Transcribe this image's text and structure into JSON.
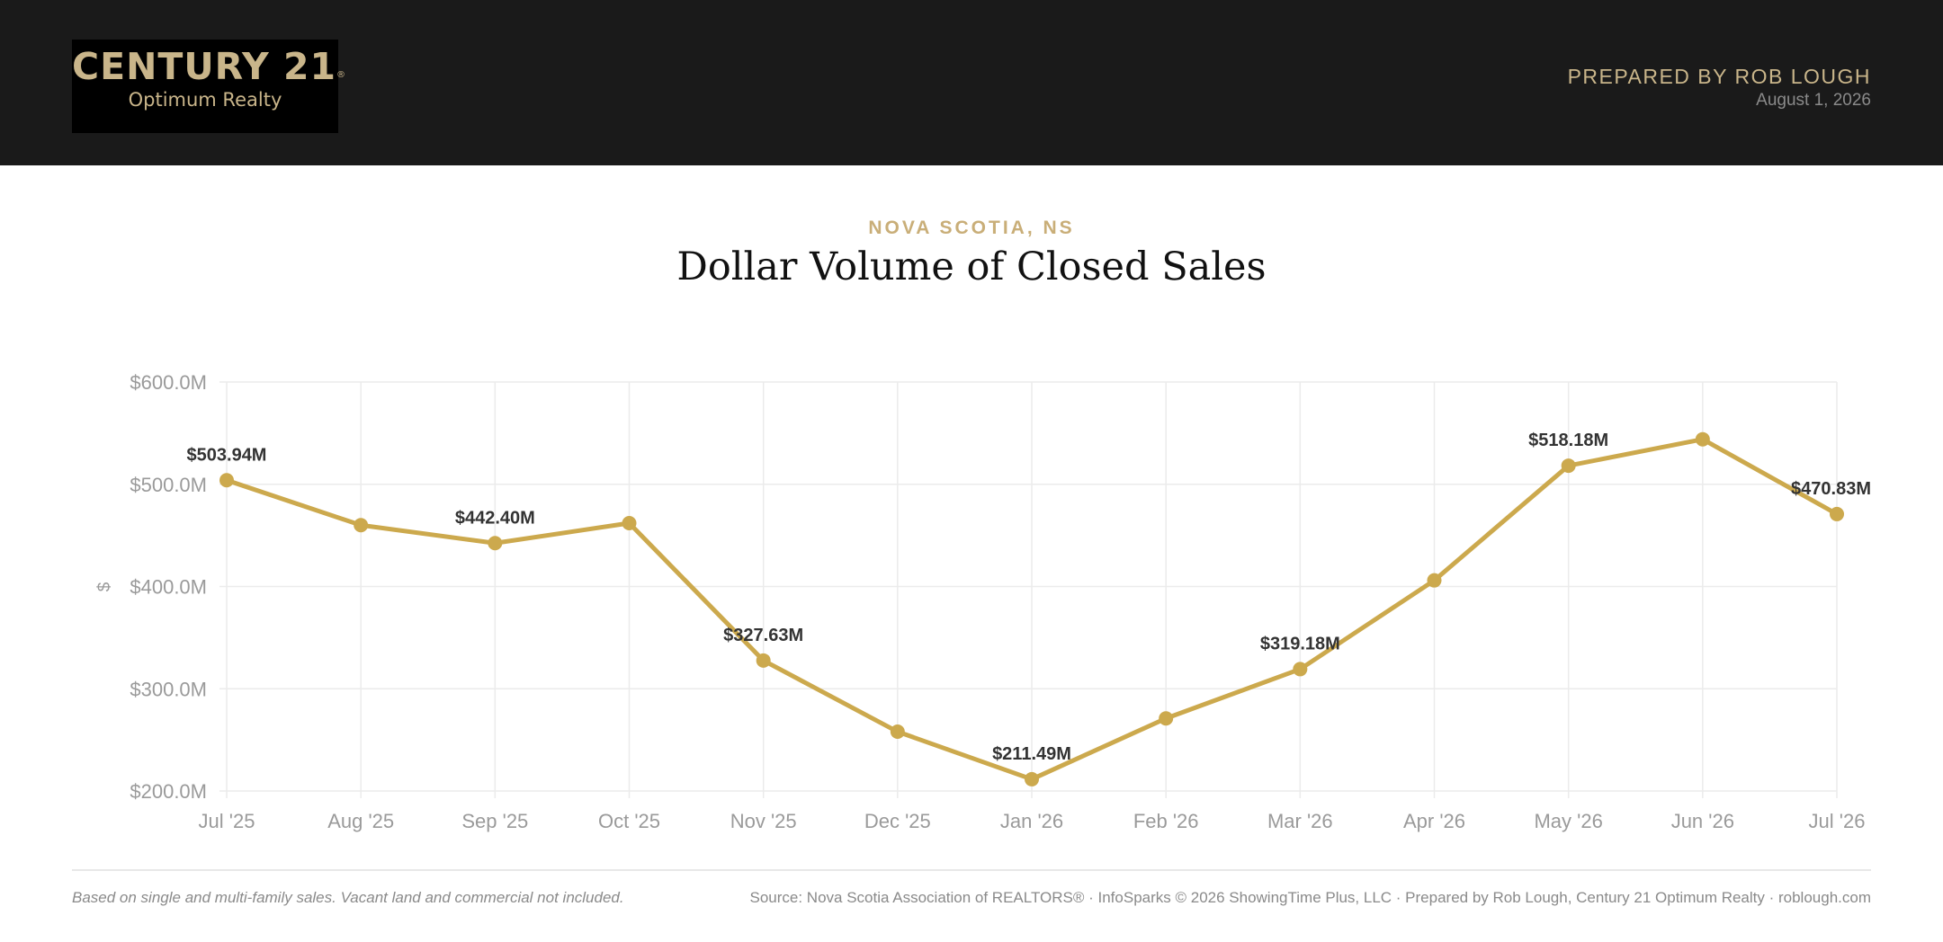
{
  "header": {
    "logo": {
      "brand": "CENTURY 21",
      "registered": "®",
      "subtitle": "Optimum Realty"
    },
    "prepared_by": "PREPARED BY ROB LOUGH",
    "date": "August 1, 2026"
  },
  "region": "NOVA SCOTIA, NS",
  "title": "Dollar Volume of Closed Sales",
  "footer": {
    "note": "Based on single and multi-family sales. Vacant land and commercial not included.",
    "source": "Source: Nova Scotia Association of REALTORS® · InfoSparks © 2026 ShowingTime Plus, LLC · Prepared by Rob Lough, Century 21 Optimum Realty · roblough.com"
  },
  "colors": {
    "header_bg": "#1a1a1a",
    "gold": "#c9ae78",
    "line": "#cca94d"
  },
  "chart_data": {
    "type": "line",
    "title": "Dollar Volume of Closed Sales",
    "ylabel": "$",
    "xlabel": "",
    "categories": [
      "Jul '25",
      "Aug '25",
      "Sep '25",
      "Oct '25",
      "Nov '25",
      "Dec '25",
      "Jan '26",
      "Feb '26",
      "Mar '26",
      "Apr '26",
      "May '26",
      "Jun '26",
      "Jul '26"
    ],
    "values": [
      503.94,
      460.0,
      442.4,
      462.0,
      327.63,
      258.0,
      211.49,
      271.0,
      319.18,
      406.0,
      518.18,
      544.0,
      470.83
    ],
    "data_labels": [
      "$503.94M",
      "",
      "$442.40M",
      "",
      "$327.63M",
      "",
      "$211.49M",
      "",
      "$319.18M",
      "",
      "$518.18M",
      "",
      "$470.83M"
    ],
    "yticks": [
      200,
      300,
      400,
      500,
      600
    ],
    "ytick_labels": [
      "$200.0M",
      "$300.0M",
      "$400.0M",
      "$500.0M",
      "$600.0M"
    ],
    "ylim": [
      200,
      600
    ],
    "units": "millions of dollars",
    "grid": true,
    "legend": "none"
  }
}
